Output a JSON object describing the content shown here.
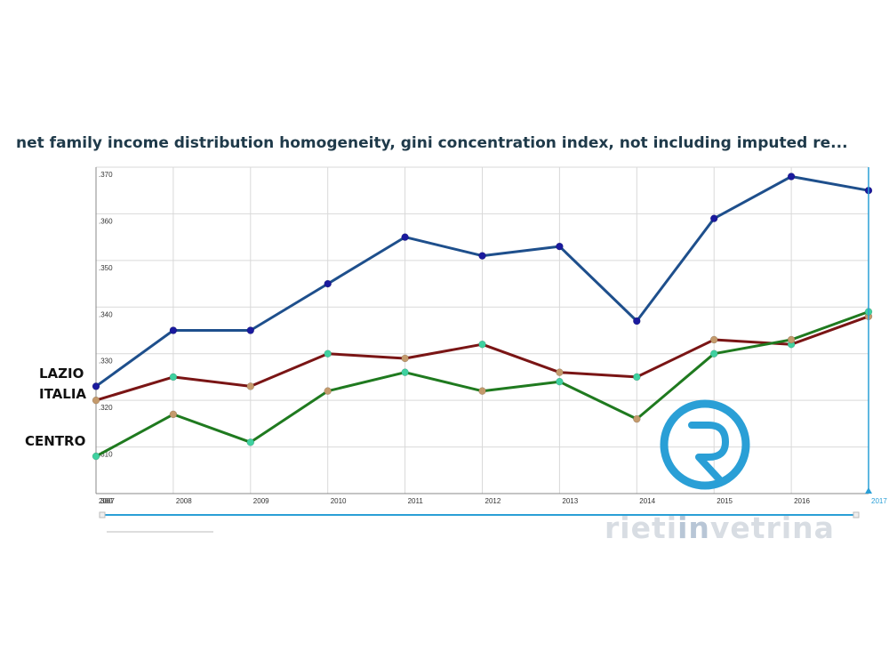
{
  "title": "net family income distribution homogeneity, gini concentration index, not including imputed re...",
  "labels": {
    "lazio": "LAZIO",
    "italia": "ITALIA",
    "centro": "CENTRO"
  },
  "watermark": {
    "prefix": "rieti",
    "highlight": "in",
    "suffix": "vetrina"
  },
  "colors": {
    "lazio": "#1e4f8c",
    "italia": "#7a1515",
    "centro": "#1f7a1f",
    "grid": "#d9d9d9",
    "axis": "#888888",
    "accent": "#2a9fd6"
  },
  "chart_data": {
    "type": "line",
    "title": "net family income distribution homogeneity, gini concentration index, not including imputed re...",
    "x": [
      "2007",
      "2008",
      "2009",
      "2010",
      "2011",
      "2012",
      "2013",
      "2014",
      "2015",
      "2016",
      "2017"
    ],
    "ylim": [
      0.3,
      0.37
    ],
    "yticks": [
      ".300",
      ".310",
      ".320",
      ".330",
      ".340",
      ".350",
      ".360",
      ".370"
    ],
    "grid": true,
    "series": [
      {
        "name": "LAZIO",
        "color": "#1e4f8c",
        "values": [
          0.323,
          0.335,
          0.335,
          0.345,
          0.355,
          0.351,
          0.353,
          0.337,
          0.359,
          0.368,
          0.365
        ]
      },
      {
        "name": "ITALIA",
        "color": "#7a1515",
        "values": [
          0.32,
          0.325,
          0.323,
          0.33,
          0.329,
          0.332,
          0.326,
          0.325,
          0.333,
          0.332,
          0.338
        ]
      },
      {
        "name": "CENTRO",
        "color": "#1f7a1f",
        "values": [
          0.308,
          0.317,
          0.311,
          0.322,
          0.326,
          0.322,
          0.324,
          0.316,
          0.33,
          0.333,
          0.339
        ]
      }
    ]
  }
}
